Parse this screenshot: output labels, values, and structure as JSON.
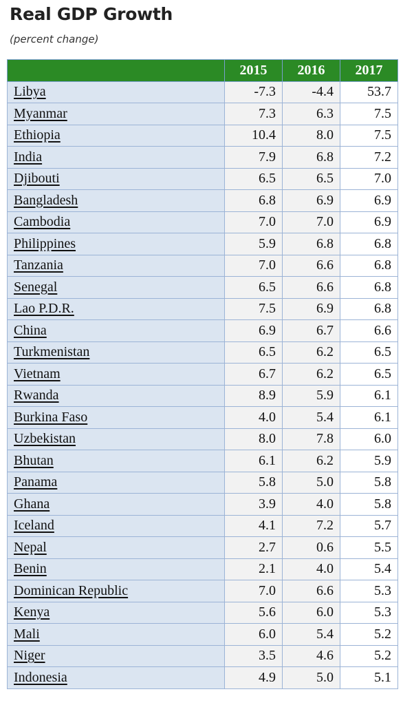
{
  "header": {
    "title": "Real GDP Growth",
    "subtitle": "(percent change)"
  },
  "table": {
    "columns": [
      "2015",
      "2016",
      "2017"
    ],
    "rows": [
      {
        "country": "Libya",
        "values": [
          "-7.3",
          "-4.4",
          "53.7"
        ]
      },
      {
        "country": "Myanmar",
        "values": [
          "7.3",
          "6.3",
          "7.5"
        ]
      },
      {
        "country": "Ethiopia",
        "values": [
          "10.4",
          "8.0",
          "7.5"
        ]
      },
      {
        "country": "India",
        "values": [
          "7.9",
          "6.8",
          "7.2"
        ]
      },
      {
        "country": "Djibouti",
        "values": [
          "6.5",
          "6.5",
          "7.0"
        ]
      },
      {
        "country": "Bangladesh",
        "values": [
          "6.8",
          "6.9",
          "6.9"
        ]
      },
      {
        "country": "Cambodia",
        "values": [
          "7.0",
          "7.0",
          "6.9"
        ]
      },
      {
        "country": "Philippines",
        "values": [
          "5.9",
          "6.8",
          "6.8"
        ]
      },
      {
        "country": "Tanzania",
        "values": [
          "7.0",
          "6.6",
          "6.8"
        ]
      },
      {
        "country": "Senegal",
        "values": [
          "6.5",
          "6.6",
          "6.8"
        ]
      },
      {
        "country": "Lao P.D.R.",
        "values": [
          "7.5",
          "6.9",
          "6.8"
        ]
      },
      {
        "country": "China",
        "values": [
          "6.9",
          "6.7",
          "6.6"
        ]
      },
      {
        "country": "Turkmenistan",
        "values": [
          "6.5",
          "6.2",
          "6.5"
        ]
      },
      {
        "country": "Vietnam",
        "values": [
          "6.7",
          "6.2",
          "6.5"
        ]
      },
      {
        "country": "Rwanda",
        "values": [
          "8.9",
          "5.9",
          "6.1"
        ]
      },
      {
        "country": "Burkina Faso",
        "values": [
          "4.0",
          "5.4",
          "6.1"
        ]
      },
      {
        "country": "Uzbekistan",
        "values": [
          "8.0",
          "7.8",
          "6.0"
        ]
      },
      {
        "country": "Bhutan",
        "values": [
          "6.1",
          "6.2",
          "5.9"
        ]
      },
      {
        "country": "Panama",
        "values": [
          "5.8",
          "5.0",
          "5.8"
        ]
      },
      {
        "country": "Ghana",
        "values": [
          "3.9",
          "4.0",
          "5.8"
        ]
      },
      {
        "country": "Iceland",
        "values": [
          "4.1",
          "7.2",
          "5.7"
        ]
      },
      {
        "country": "Nepal",
        "values": [
          "2.7",
          "0.6",
          "5.5"
        ]
      },
      {
        "country": "Benin",
        "values": [
          "2.1",
          "4.0",
          "5.4"
        ]
      },
      {
        "country": "Dominican Republic",
        "values": [
          "7.0",
          "6.6",
          "5.3"
        ]
      },
      {
        "country": "Kenya",
        "values": [
          "5.6",
          "6.0",
          "5.3"
        ]
      },
      {
        "country": "Mali",
        "values": [
          "6.0",
          "5.4",
          "5.2"
        ]
      },
      {
        "country": "Niger",
        "values": [
          "3.5",
          "4.6",
          "5.2"
        ]
      },
      {
        "country": "Indonesia",
        "values": [
          "4.9",
          "5.0",
          "5.1"
        ]
      }
    ]
  },
  "colors": {
    "header_green": "#2b8a25",
    "country_cell": "#dbe5f1",
    "value_cell": "#f2f2f2",
    "border": "#9bb3d6"
  }
}
